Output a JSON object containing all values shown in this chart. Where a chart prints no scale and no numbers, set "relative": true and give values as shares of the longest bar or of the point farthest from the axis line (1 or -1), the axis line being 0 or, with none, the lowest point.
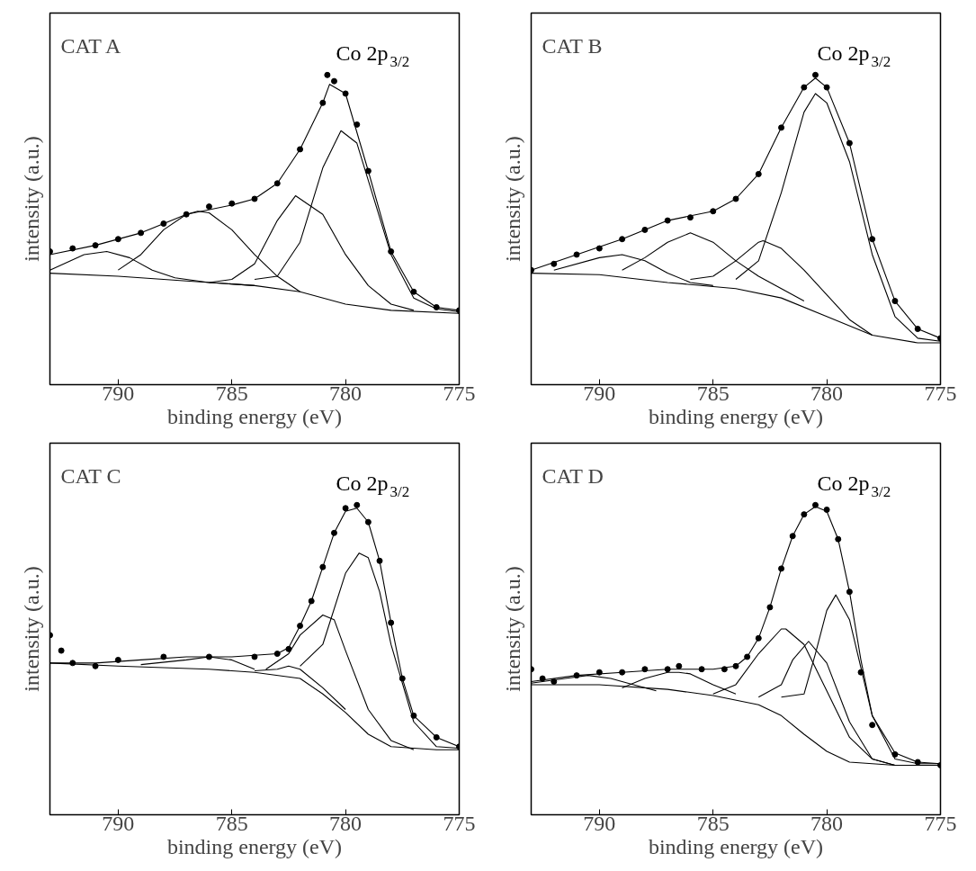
{
  "chart_data": [
    {
      "type": "scatter",
      "title": "CAT A",
      "xlabel": "binding energy (eV)",
      "ylabel": "intensity (a.u.)",
      "relative": true,
      "tick_labels": "x",
      "xlim": [
        793,
        775
      ],
      "xticks": [
        790,
        785,
        780,
        775
      ],
      "annotations": [
        "Co 2p$_{3/2}$"
      ],
      "series": [
        {
          "marker": "circle",
          "color": "#000000",
          "x": [
            793,
            792,
            791,
            790,
            789,
            788,
            787,
            786,
            785,
            784,
            783,
            782,
            781,
            780.8,
            780.5,
            780,
            779.5,
            779,
            778,
            777,
            776,
            775
          ],
          "values": [
            0.43,
            0.44,
            0.45,
            0.47,
            0.49,
            0.52,
            0.55,
            0.575,
            0.585,
            0.6,
            0.65,
            0.76,
            0.91,
            1.0,
            0.98,
            0.94,
            0.84,
            0.69,
            0.43,
            0.3,
            0.25,
            0.24
          ]
        },
        {
          "type": "line",
          "color": "#000000",
          "x": [
            793,
            791,
            789,
            787,
            785,
            784,
            783,
            782,
            781,
            780.7,
            780,
            779,
            778,
            777,
            776,
            775
          ],
          "values": [
            0.42,
            0.45,
            0.49,
            0.55,
            0.58,
            0.6,
            0.65,
            0.76,
            0.91,
            0.97,
            0.94,
            0.69,
            0.43,
            0.3,
            0.25,
            0.24
          ]
        },
        {
          "type": "line",
          "color": "#000000",
          "x": [
            793,
            790,
            787,
            784,
            782,
            780,
            778,
            775
          ],
          "values": [
            0.36,
            0.35,
            0.335,
            0.32,
            0.3,
            0.26,
            0.24,
            0.23
          ]
        },
        {
          "type": "line",
          "color": "#000000",
          "x": [
            793,
            791.5,
            790.5,
            789.5,
            788.5,
            787.5,
            786,
            784
          ],
          "values": [
            0.37,
            0.42,
            0.43,
            0.41,
            0.37,
            0.345,
            0.33,
            0.32
          ]
        },
        {
          "type": "line",
          "color": "#000000",
          "x": [
            790,
            789,
            788,
            787,
            786.5,
            786,
            785,
            784,
            783,
            782
          ],
          "values": [
            0.37,
            0.42,
            0.5,
            0.55,
            0.56,
            0.555,
            0.5,
            0.42,
            0.35,
            0.3
          ]
        },
        {
          "type": "line",
          "color": "#000000",
          "x": [
            786,
            785,
            784,
            783,
            782.2,
            781,
            780,
            779,
            778,
            777
          ],
          "values": [
            0.33,
            0.34,
            0.39,
            0.53,
            0.61,
            0.55,
            0.42,
            0.32,
            0.26,
            0.24
          ]
        },
        {
          "type": "line",
          "color": "#000000",
          "x": [
            784,
            783,
            782,
            781,
            780.2,
            779.5,
            779,
            778,
            777,
            776,
            775
          ],
          "values": [
            0.34,
            0.35,
            0.46,
            0.7,
            0.82,
            0.78,
            0.66,
            0.42,
            0.28,
            0.245,
            0.235
          ]
        }
      ]
    },
    {
      "type": "scatter",
      "title": "CAT B",
      "xlabel": "binding energy (eV)",
      "ylabel": "intensity (a.u.)",
      "relative": true,
      "tick_labels": "x",
      "xlim": [
        793,
        775
      ],
      "xticks": [
        790,
        785,
        780,
        775
      ],
      "annotations": [
        "Co 2p$_{3/2}$"
      ],
      "series": [
        {
          "marker": "circle",
          "color": "#000000",
          "x": [
            793,
            792,
            791,
            790,
            789,
            788,
            787,
            786,
            785,
            784,
            783,
            782,
            781,
            780.5,
            780,
            779,
            778,
            777,
            776,
            775
          ],
          "values": [
            0.37,
            0.39,
            0.42,
            0.44,
            0.47,
            0.5,
            0.53,
            0.54,
            0.56,
            0.6,
            0.68,
            0.83,
            0.96,
            1.0,
            0.96,
            0.78,
            0.47,
            0.27,
            0.18,
            0.15
          ]
        },
        {
          "type": "line",
          "color": "#000000",
          "x": [
            793,
            791,
            789,
            787,
            785,
            784,
            783,
            782,
            781,
            780.5,
            780,
            779,
            778,
            777,
            776,
            775
          ],
          "values": [
            0.37,
            0.42,
            0.47,
            0.53,
            0.56,
            0.6,
            0.68,
            0.83,
            0.96,
            0.99,
            0.96,
            0.78,
            0.47,
            0.27,
            0.18,
            0.15
          ]
        },
        {
          "type": "line",
          "color": "#000000",
          "x": [
            793,
            790,
            787,
            784,
            782,
            780,
            778,
            776,
            775
          ],
          "values": [
            0.36,
            0.355,
            0.33,
            0.31,
            0.28,
            0.22,
            0.16,
            0.135,
            0.135
          ]
        },
        {
          "type": "line",
          "color": "#000000",
          "x": [
            792,
            790,
            789,
            788,
            787,
            786,
            785
          ],
          "values": [
            0.37,
            0.41,
            0.42,
            0.4,
            0.36,
            0.33,
            0.32
          ]
        },
        {
          "type": "line",
          "color": "#000000",
          "x": [
            789,
            788,
            787,
            786,
            785,
            784,
            783,
            782,
            781
          ],
          "values": [
            0.37,
            0.41,
            0.46,
            0.49,
            0.46,
            0.4,
            0.35,
            0.31,
            0.27
          ]
        },
        {
          "type": "line",
          "color": "#000000",
          "x": [
            786,
            785,
            784,
            783,
            782.8,
            782,
            781,
            780,
            779,
            778
          ],
          "values": [
            0.34,
            0.35,
            0.4,
            0.46,
            0.465,
            0.44,
            0.37,
            0.29,
            0.21,
            0.16
          ]
        },
        {
          "type": "line",
          "color": "#000000",
          "x": [
            784,
            783,
            782,
            781,
            780.5,
            780,
            779,
            778,
            777,
            776,
            775
          ],
          "values": [
            0.34,
            0.4,
            0.62,
            0.88,
            0.94,
            0.91,
            0.72,
            0.42,
            0.22,
            0.15,
            0.14
          ]
        }
      ]
    },
    {
      "type": "scatter",
      "title": "CAT C",
      "xlabel": "binding energy (eV)",
      "ylabel": "intensity (a.u.)",
      "relative": true,
      "tick_labels": "x",
      "xlim": [
        793,
        775
      ],
      "xticks": [
        790,
        785,
        780,
        775
      ],
      "annotations": [
        "Co 2p$_{3/2}$"
      ],
      "series": [
        {
          "marker": "circle",
          "color": "#000000",
          "x": [
            793,
            792.5,
            792,
            791,
            790,
            788,
            786,
            784,
            783,
            782.5,
            782,
            781.5,
            781,
            780.5,
            780,
            779.5,
            779,
            778.5,
            778,
            777.5,
            777,
            776,
            775
          ],
          "values": [
            0.58,
            0.53,
            0.49,
            0.48,
            0.5,
            0.51,
            0.51,
            0.51,
            0.52,
            0.535,
            0.61,
            0.69,
            0.8,
            0.91,
            0.99,
            1.0,
            0.945,
            0.82,
            0.62,
            0.44,
            0.32,
            0.25,
            0.22
          ]
        },
        {
          "type": "line",
          "color": "#000000",
          "x": [
            793,
            791,
            789,
            787,
            785,
            783,
            782.5,
            782,
            781.5,
            781,
            780.5,
            780,
            779.5,
            779,
            778.5,
            778,
            777.5,
            777,
            776,
            775
          ],
          "values": [
            0.49,
            0.49,
            0.5,
            0.51,
            0.51,
            0.52,
            0.54,
            0.61,
            0.69,
            0.8,
            0.91,
            0.98,
            0.99,
            0.945,
            0.82,
            0.62,
            0.44,
            0.32,
            0.25,
            0.22
          ]
        },
        {
          "type": "line",
          "color": "#000000",
          "x": [
            793,
            790,
            786,
            784,
            782,
            781,
            780,
            779,
            778,
            776,
            775
          ],
          "values": [
            0.49,
            0.48,
            0.47,
            0.46,
            0.44,
            0.39,
            0.33,
            0.26,
            0.22,
            0.21,
            0.21
          ]
        },
        {
          "type": "line",
          "color": "#000000",
          "x": [
            789,
            787,
            786,
            785,
            784
          ],
          "values": [
            0.485,
            0.5,
            0.51,
            0.5,
            0.47
          ]
        },
        {
          "type": "line",
          "color": "#000000",
          "x": [
            784,
            783,
            782.5,
            782,
            781,
            780
          ],
          "values": [
            0.465,
            0.47,
            0.48,
            0.47,
            0.41,
            0.34
          ]
        },
        {
          "type": "line",
          "color": "#000000",
          "x": [
            783.5,
            782.5,
            782,
            781,
            780.5,
            780,
            779,
            778,
            777
          ],
          "values": [
            0.47,
            0.52,
            0.58,
            0.645,
            0.63,
            0.53,
            0.34,
            0.24,
            0.21
          ]
        },
        {
          "type": "line",
          "color": "#000000",
          "x": [
            782,
            781,
            780,
            779.4,
            779,
            778.5,
            778,
            777,
            776,
            775
          ],
          "values": [
            0.48,
            0.55,
            0.78,
            0.845,
            0.83,
            0.72,
            0.55,
            0.3,
            0.22,
            0.215
          ]
        }
      ]
    },
    {
      "type": "scatter",
      "title": "CAT D",
      "xlabel": "binding energy (eV)",
      "ylabel": "intensity (a.u.)",
      "relative": true,
      "tick_labels": "x",
      "xlim": [
        793,
        775
      ],
      "xticks": [
        790,
        785,
        780,
        775
      ],
      "annotations": [
        "Co 2p$_{3/2}$"
      ],
      "series": [
        {
          "marker": "circle",
          "color": "#000000",
          "x": [
            793,
            792.5,
            792,
            791,
            790,
            789,
            788,
            787,
            786.5,
            785.5,
            784.5,
            784,
            783.5,
            783,
            782.5,
            782,
            781.5,
            781,
            780.5,
            780,
            779.5,
            779,
            778.5,
            778,
            777,
            776,
            775
          ],
          "values": [
            0.47,
            0.44,
            0.43,
            0.45,
            0.46,
            0.46,
            0.47,
            0.47,
            0.48,
            0.47,
            0.47,
            0.48,
            0.51,
            0.57,
            0.67,
            0.795,
            0.9,
            0.97,
            1.0,
            0.985,
            0.89,
            0.72,
            0.46,
            0.29,
            0.195,
            0.17,
            0.16
          ]
        },
        {
          "type": "line",
          "color": "#000000",
          "x": [
            793,
            791,
            789,
            787,
            785,
            784,
            783.5,
            783,
            782.5,
            782,
            781.5,
            781,
            780.5,
            780,
            779.5,
            779,
            778.5,
            778,
            777,
            776,
            775
          ],
          "values": [
            0.43,
            0.45,
            0.46,
            0.47,
            0.47,
            0.48,
            0.51,
            0.57,
            0.67,
            0.795,
            0.9,
            0.97,
            0.995,
            0.98,
            0.89,
            0.72,
            0.5,
            0.32,
            0.2,
            0.17,
            0.165
          ]
        },
        {
          "type": "line",
          "color": "#000000",
          "x": [
            793,
            790,
            787,
            785,
            783,
            782,
            781,
            780,
            779,
            777,
            775
          ],
          "values": [
            0.42,
            0.42,
            0.405,
            0.385,
            0.355,
            0.32,
            0.26,
            0.205,
            0.17,
            0.16,
            0.16
          ]
        },
        {
          "type": "line",
          "color": "#000000",
          "x": [
            793,
            791.5,
            790.5,
            789.5,
            788.5,
            787.5
          ],
          "values": [
            0.425,
            0.44,
            0.45,
            0.44,
            0.42,
            0.4
          ]
        },
        {
          "type": "line",
          "color": "#000000",
          "x": [
            789,
            788,
            787,
            786.5,
            786,
            785,
            784
          ],
          "values": [
            0.41,
            0.44,
            0.46,
            0.46,
            0.455,
            0.42,
            0.39
          ]
        },
        {
          "type": "line",
          "color": "#000000",
          "x": [
            785,
            784,
            783,
            782,
            781.8,
            781,
            780,
            779,
            778,
            777
          ],
          "values": [
            0.39,
            0.42,
            0.52,
            0.6,
            0.6,
            0.55,
            0.4,
            0.25,
            0.18,
            0.16
          ]
        },
        {
          "type": "line",
          "color": "#000000",
          "x": [
            783,
            782,
            781.5,
            780.8,
            780,
            779,
            778,
            777
          ],
          "values": [
            0.38,
            0.42,
            0.5,
            0.56,
            0.49,
            0.3,
            0.18,
            0.16
          ]
        },
        {
          "type": "line",
          "color": "#000000",
          "x": [
            782,
            781,
            780.5,
            780,
            779.6,
            779,
            778,
            777,
            776,
            775
          ],
          "values": [
            0.38,
            0.39,
            0.52,
            0.66,
            0.71,
            0.63,
            0.32,
            0.18,
            0.165,
            0.165
          ]
        }
      ]
    }
  ]
}
